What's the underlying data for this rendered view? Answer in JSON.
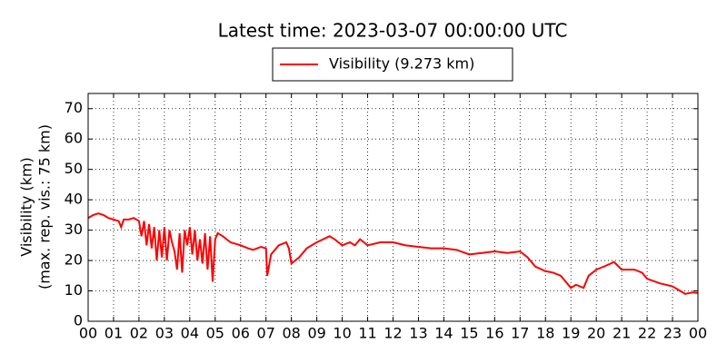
{
  "chart_data": {
    "type": "line",
    "title": "Latest time: 2023-03-07 00:00:00 UTC",
    "ylabel": [
      "Visibility (km)",
      "(max. rep. vis.: 75 km)"
    ],
    "x": [
      0,
      0.2,
      0.4,
      0.6,
      0.8,
      1.0,
      1.2,
      1.3,
      1.4,
      1.6,
      1.8,
      2.0,
      2.1,
      2.2,
      2.3,
      2.4,
      2.5,
      2.6,
      2.7,
      2.8,
      2.9,
      3.0,
      3.1,
      3.2,
      3.3,
      3.4,
      3.5,
      3.6,
      3.7,
      3.8,
      3.9,
      4.0,
      4.1,
      4.2,
      4.3,
      4.4,
      4.5,
      4.6,
      4.7,
      4.8,
      4.9,
      5.0,
      5.1,
      5.3,
      5.6,
      6.0,
      6.3,
      6.5,
      6.8,
      7.0,
      7.05,
      7.2,
      7.5,
      7.8,
      7.9,
      8.0,
      8.3,
      8.6,
      9.0,
      9.5,
      9.7,
      10.0,
      10.3,
      10.5,
      10.7,
      11.0,
      11.5,
      12.0,
      12.5,
      13.0,
      13.5,
      14.0,
      14.5,
      15.0,
      15.5,
      16.0,
      16.5,
      17.0,
      17.3,
      17.6,
      18.0,
      18.3,
      18.6,
      19.0,
      19.2,
      19.5,
      19.7,
      20.0,
      20.3,
      20.7,
      21.0,
      21.5,
      21.8,
      22.0,
      22.5,
      23.0,
      23.3,
      23.5,
      23.8,
      24.0
    ],
    "series": [
      {
        "name": "Visibility (9.273 km)",
        "color": "#ff0000",
        "values": [
          34,
          35,
          35.5,
          35,
          34,
          33.5,
          33,
          31,
          33.5,
          33.5,
          34,
          33,
          28,
          33,
          25,
          32,
          24,
          31,
          20,
          30,
          21,
          31,
          20,
          30,
          26,
          23,
          17,
          29,
          16,
          30,
          25,
          31,
          22,
          30,
          20,
          27,
          19,
          29,
          17,
          28,
          13,
          27,
          29,
          28,
          26,
          25,
          24,
          23.5,
          24.5,
          24,
          15,
          22,
          25,
          26,
          24,
          19,
          21,
          24,
          26,
          28,
          27,
          25,
          26,
          25,
          27,
          25,
          26,
          26,
          25,
          24.5,
          24,
          24,
          23.5,
          22,
          22.5,
          23,
          22.5,
          23,
          21,
          18,
          16.5,
          16,
          15,
          11,
          12,
          11,
          15,
          17,
          18,
          19.5,
          17,
          17,
          16,
          14,
          12.5,
          11.5,
          10,
          9,
          9.5,
          9.3
        ]
      }
    ],
    "xlim": [
      0,
      24
    ],
    "xticks": [
      {
        "value": 0,
        "label": "00"
      },
      {
        "value": 1,
        "label": "01"
      },
      {
        "value": 2,
        "label": "02"
      },
      {
        "value": 3,
        "label": "03"
      },
      {
        "value": 4,
        "label": "04"
      },
      {
        "value": 5,
        "label": "05"
      },
      {
        "value": 6,
        "label": "06"
      },
      {
        "value": 7,
        "label": "07"
      },
      {
        "value": 8,
        "label": "08"
      },
      {
        "value": 9,
        "label": "09"
      },
      {
        "value": 10,
        "label": "10"
      },
      {
        "value": 11,
        "label": "11"
      },
      {
        "value": 12,
        "label": "12"
      },
      {
        "value": 13,
        "label": "13"
      },
      {
        "value": 14,
        "label": "14"
      },
      {
        "value": 15,
        "label": "15"
      },
      {
        "value": 16,
        "label": "16"
      },
      {
        "value": 17,
        "label": "17"
      },
      {
        "value": 18,
        "label": "18"
      },
      {
        "value": 19,
        "label": "19"
      },
      {
        "value": 20,
        "label": "20"
      },
      {
        "value": 21,
        "label": "21"
      },
      {
        "value": 22,
        "label": "22"
      },
      {
        "value": 23,
        "label": "23"
      },
      {
        "value": 24,
        "label": "00"
      }
    ],
    "ylim": [
      0,
      75
    ],
    "yticks": [
      0,
      10,
      20,
      30,
      40,
      50,
      60,
      70
    ],
    "grid": true
  }
}
